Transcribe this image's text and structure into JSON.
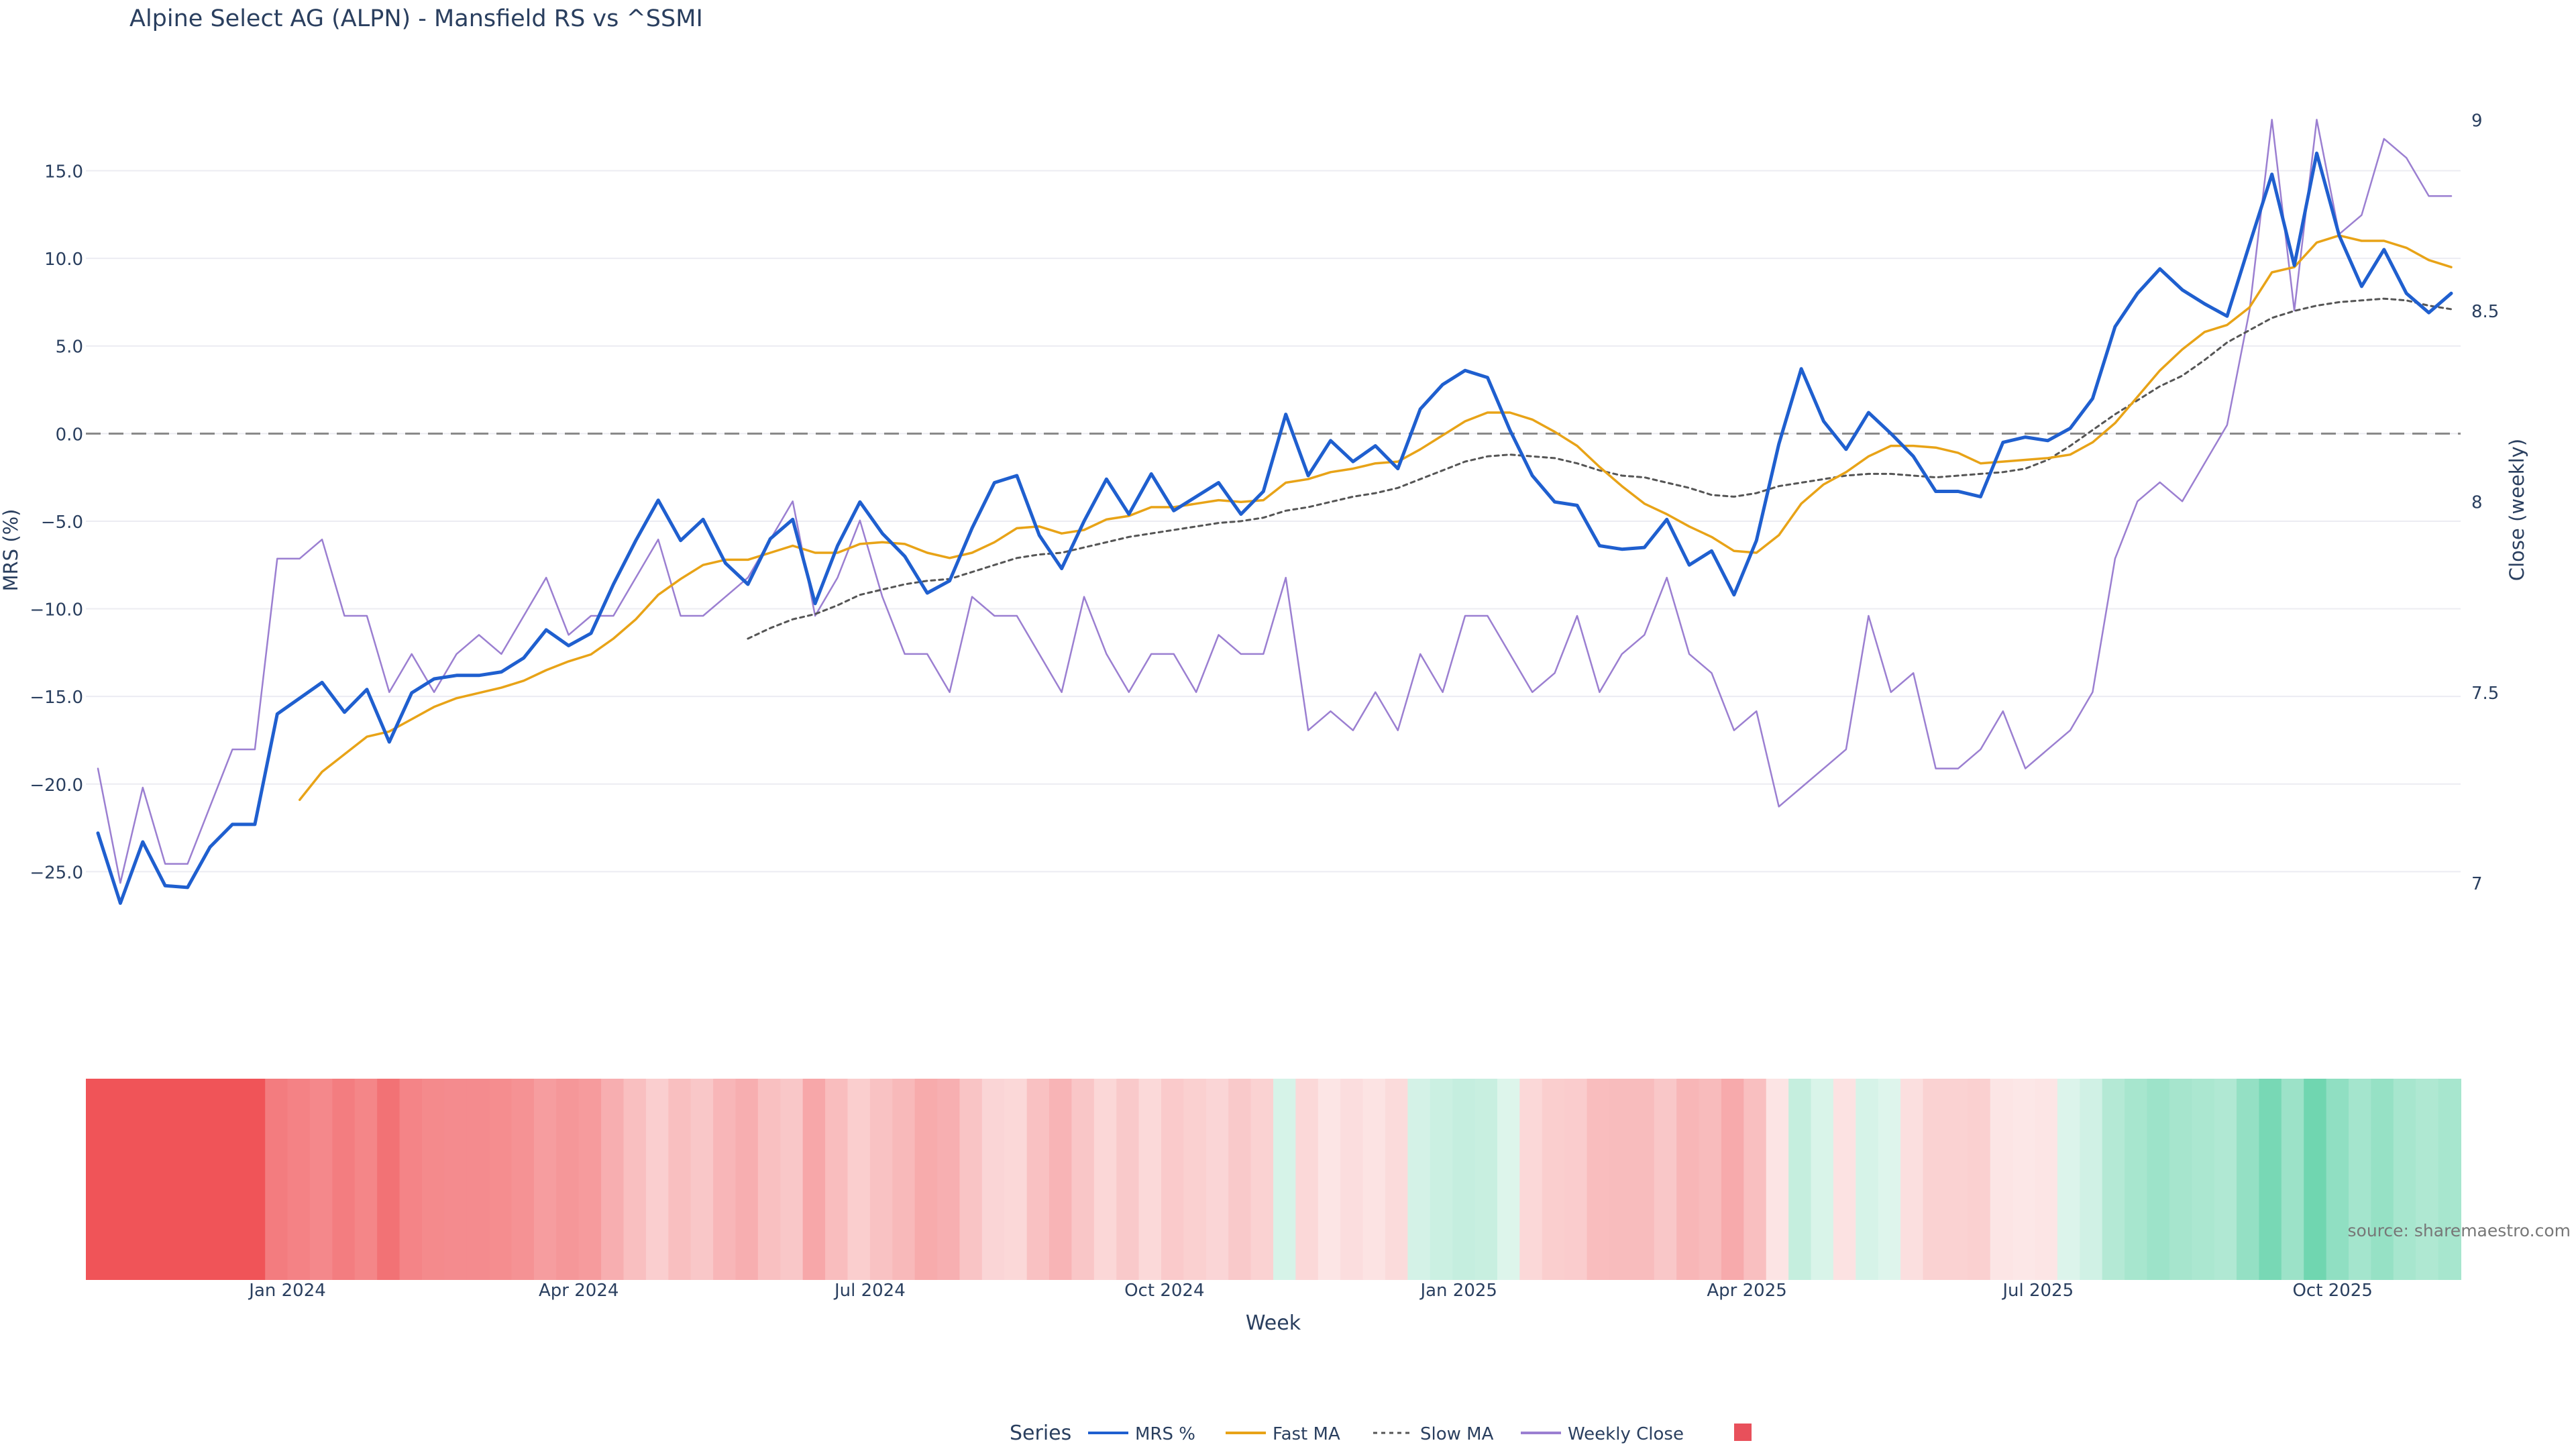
{
  "title": "Alpine Select AG (ALPN) - Mansfield RS vs ^SSMI",
  "source_note": "source: sharemaestro.com",
  "chart_data": {
    "type": "line",
    "title": "Alpine Select AG (ALPN) - Mansfield RS vs ^SSMI",
    "xlabel": "Week",
    "ylabel_left": "MRS (%)",
    "ylabel_right": "Close (weekly)",
    "x_start": "2023-10-30",
    "x_step_days": 7,
    "x_tick_labels": [
      "Jan 2024",
      "Apr 2024",
      "Jul 2024",
      "Oct 2024",
      "Jan 2025",
      "Apr 2025",
      "Jul 2025",
      "Oct 2025"
    ],
    "x_tick_dates": [
      "2024-01-01",
      "2024-04-01",
      "2024-07-01",
      "2024-10-01",
      "2025-01-01",
      "2025-04-01",
      "2025-07-01",
      "2025-10-01"
    ],
    "y_left_ticks": [
      15.0,
      10.0,
      5.0,
      0.0,
      -5.0,
      -10.0,
      -15.0,
      -20.0,
      -25.0
    ],
    "y_left_tick_labels": [
      "15.0",
      "10.0",
      "5.0",
      "0.0",
      "−5.0",
      "−10.0",
      "−15.0",
      "−20.0",
      "−25.0"
    ],
    "y_left_range": [
      -30,
      19
    ],
    "y_right_ticks": [
      7,
      7.5,
      8,
      8.5,
      9
    ],
    "y_right_tick_labels": [
      "7",
      "7.5",
      "8",
      "8.5",
      "9"
    ],
    "y_right_range": [
      6.8,
      9.05
    ],
    "zero_line": 0,
    "grid": true,
    "legend_title": "Series",
    "legend_position": "bottom-center",
    "series": [
      {
        "name": "MRS %",
        "axis": "left",
        "color": "#1f5fcf",
        "style": "solid",
        "values": [
          -22.8,
          -26.8,
          -23.3,
          -25.8,
          -25.9,
          -23.6,
          -22.3,
          -22.3,
          -16.0,
          -15.1,
          -14.2,
          -15.9,
          -14.6,
          -17.6,
          -14.8,
          -14.0,
          -13.8,
          -13.8,
          -13.6,
          -12.8,
          -11.2,
          -12.1,
          -11.4,
          -8.6,
          -6.1,
          -3.8,
          -6.1,
          -4.9,
          -7.4,
          -8.6,
          -6.0,
          -4.9,
          -9.7,
          -6.4,
          -3.9,
          -5.7,
          -7.0,
          -9.1,
          -8.4,
          -5.4,
          -2.8,
          -2.4,
          -5.8,
          -7.7,
          -5.0,
          -2.6,
          -4.6,
          -2.3,
          -4.4,
          -3.6,
          -2.8,
          -4.6,
          -3.3,
          1.1,
          -2.4,
          -0.4,
          -1.6,
          -0.7,
          -2.0,
          1.4,
          2.8,
          3.6,
          3.2,
          0.2,
          -2.4,
          -3.9,
          -4.1,
          -6.4,
          -6.6,
          -6.5,
          -4.9,
          -7.5,
          -6.7,
          -9.2,
          -6.1,
          -0.6,
          3.7,
          0.7,
          -0.9,
          1.2,
          0.0,
          -1.3,
          -3.3,
          -3.3,
          -3.6,
          -0.5,
          -0.2,
          -0.4,
          0.3,
          2.0,
          6.1,
          8.0,
          9.4,
          8.2,
          7.4,
          6.7,
          10.8,
          14.8,
          9.6,
          16.0,
          11.3,
          8.4,
          10.5,
          8.0,
          6.9,
          8.0
        ]
      },
      {
        "name": "Fast MA",
        "axis": "left",
        "color": "#e8a317",
        "style": "solid",
        "values": [
          null,
          null,
          null,
          null,
          null,
          null,
          null,
          null,
          null,
          -20.9,
          -19.3,
          -18.3,
          -17.3,
          -17.0,
          -16.3,
          -15.6,
          -15.1,
          -14.8,
          -14.5,
          -14.1,
          -13.5,
          -13.0,
          -12.6,
          -11.7,
          -10.6,
          -9.2,
          -8.3,
          -7.5,
          -7.2,
          -7.2,
          -6.8,
          -6.4,
          -6.8,
          -6.8,
          -6.3,
          -6.2,
          -6.3,
          -6.8,
          -7.1,
          -6.8,
          -6.2,
          -5.4,
          -5.3,
          -5.7,
          -5.5,
          -4.9,
          -4.7,
          -4.2,
          -4.2,
          -4.0,
          -3.8,
          -3.9,
          -3.8,
          -2.8,
          -2.6,
          -2.2,
          -2.0,
          -1.7,
          -1.6,
          -0.9,
          -0.1,
          0.7,
          1.2,
          1.2,
          0.8,
          0.1,
          -0.7,
          -1.9,
          -3.0,
          -4.0,
          -4.6,
          -5.3,
          -5.9,
          -6.7,
          -6.8,
          -5.8,
          -4.0,
          -2.9,
          -2.2,
          -1.3,
          -0.7,
          -0.7,
          -0.8,
          -1.1,
          -1.7,
          -1.6,
          -1.5,
          -1.4,
          -1.2,
          -0.5,
          0.6,
          2.1,
          3.6,
          4.8,
          5.8,
          6.2,
          7.2,
          9.2,
          9.5,
          10.9,
          11.3,
          11.0,
          11.0,
          10.6,
          9.9,
          9.5
        ]
      },
      {
        "name": "Slow MA",
        "axis": "left",
        "color": "#555555",
        "style": "dotted",
        "values": [
          null,
          null,
          null,
          null,
          null,
          null,
          null,
          null,
          null,
          null,
          null,
          null,
          null,
          null,
          null,
          null,
          null,
          null,
          null,
          null,
          null,
          null,
          null,
          null,
          null,
          null,
          null,
          null,
          null,
          -11.7,
          -11.1,
          -10.6,
          -10.3,
          -9.8,
          -9.2,
          -8.9,
          -8.6,
          -8.4,
          -8.3,
          -7.9,
          -7.5,
          -7.1,
          -6.9,
          -6.8,
          -6.5,
          -6.2,
          -5.9,
          -5.7,
          -5.5,
          -5.3,
          -5.1,
          -5.0,
          -4.8,
          -4.4,
          -4.2,
          -3.9,
          -3.6,
          -3.4,
          -3.1,
          -2.6,
          -2.1,
          -1.6,
          -1.3,
          -1.2,
          -1.3,
          -1.4,
          -1.7,
          -2.1,
          -2.4,
          -2.5,
          -2.8,
          -3.1,
          -3.5,
          -3.6,
          -3.4,
          -3.0,
          -2.8,
          -2.6,
          -2.4,
          -2.3,
          -2.3,
          -2.4,
          -2.5,
          -2.4,
          -2.3,
          -2.2,
          -2.0,
          -1.5,
          -0.7,
          0.2,
          1.1,
          1.9,
          2.7,
          3.3,
          4.2,
          5.2,
          5.9,
          6.6,
          7.0,
          7.3,
          7.5,
          7.6,
          7.7,
          7.6,
          7.3,
          7.1
        ]
      },
      {
        "name": "Weekly Close",
        "axis": "right",
        "color": "#9b7fd1",
        "style": "solid",
        "values": [
          7.3,
          7.0,
          7.25,
          7.05,
          7.05,
          7.2,
          7.35,
          7.35,
          7.85,
          7.85,
          7.9,
          7.7,
          7.7,
          7.5,
          7.6,
          7.5,
          7.6,
          7.65,
          7.6,
          7.7,
          7.8,
          7.65,
          7.7,
          7.7,
          7.8,
          7.9,
          7.7,
          7.7,
          7.75,
          7.8,
          7.9,
          8.0,
          7.7,
          7.8,
          7.95,
          7.75,
          7.6,
          7.6,
          7.5,
          7.75,
          7.7,
          7.7,
          7.6,
          7.5,
          7.75,
          7.6,
          7.5,
          7.6,
          7.6,
          7.5,
          7.65,
          7.6,
          7.6,
          7.8,
          7.4,
          7.45,
          7.4,
          7.5,
          7.4,
          7.6,
          7.5,
          7.7,
          7.7,
          7.6,
          7.5,
          7.55,
          7.7,
          7.5,
          7.6,
          7.65,
          7.8,
          7.6,
          7.55,
          7.4,
          7.45,
          7.2,
          7.25,
          7.3,
          7.35,
          7.7,
          7.5,
          7.55,
          7.3,
          7.3,
          7.35,
          7.45,
          7.3,
          7.35,
          7.4,
          7.5,
          7.85,
          8.0,
          8.05,
          8.0,
          8.1,
          8.2,
          8.5,
          9.0,
          8.5,
          9.0,
          8.7,
          8.75,
          8.95,
          8.9,
          8.8,
          8.8
        ]
      },
      {
        "name": "",
        "type": "heatmap",
        "legend_swatch_color": "#e8505b"
      }
    ]
  }
}
